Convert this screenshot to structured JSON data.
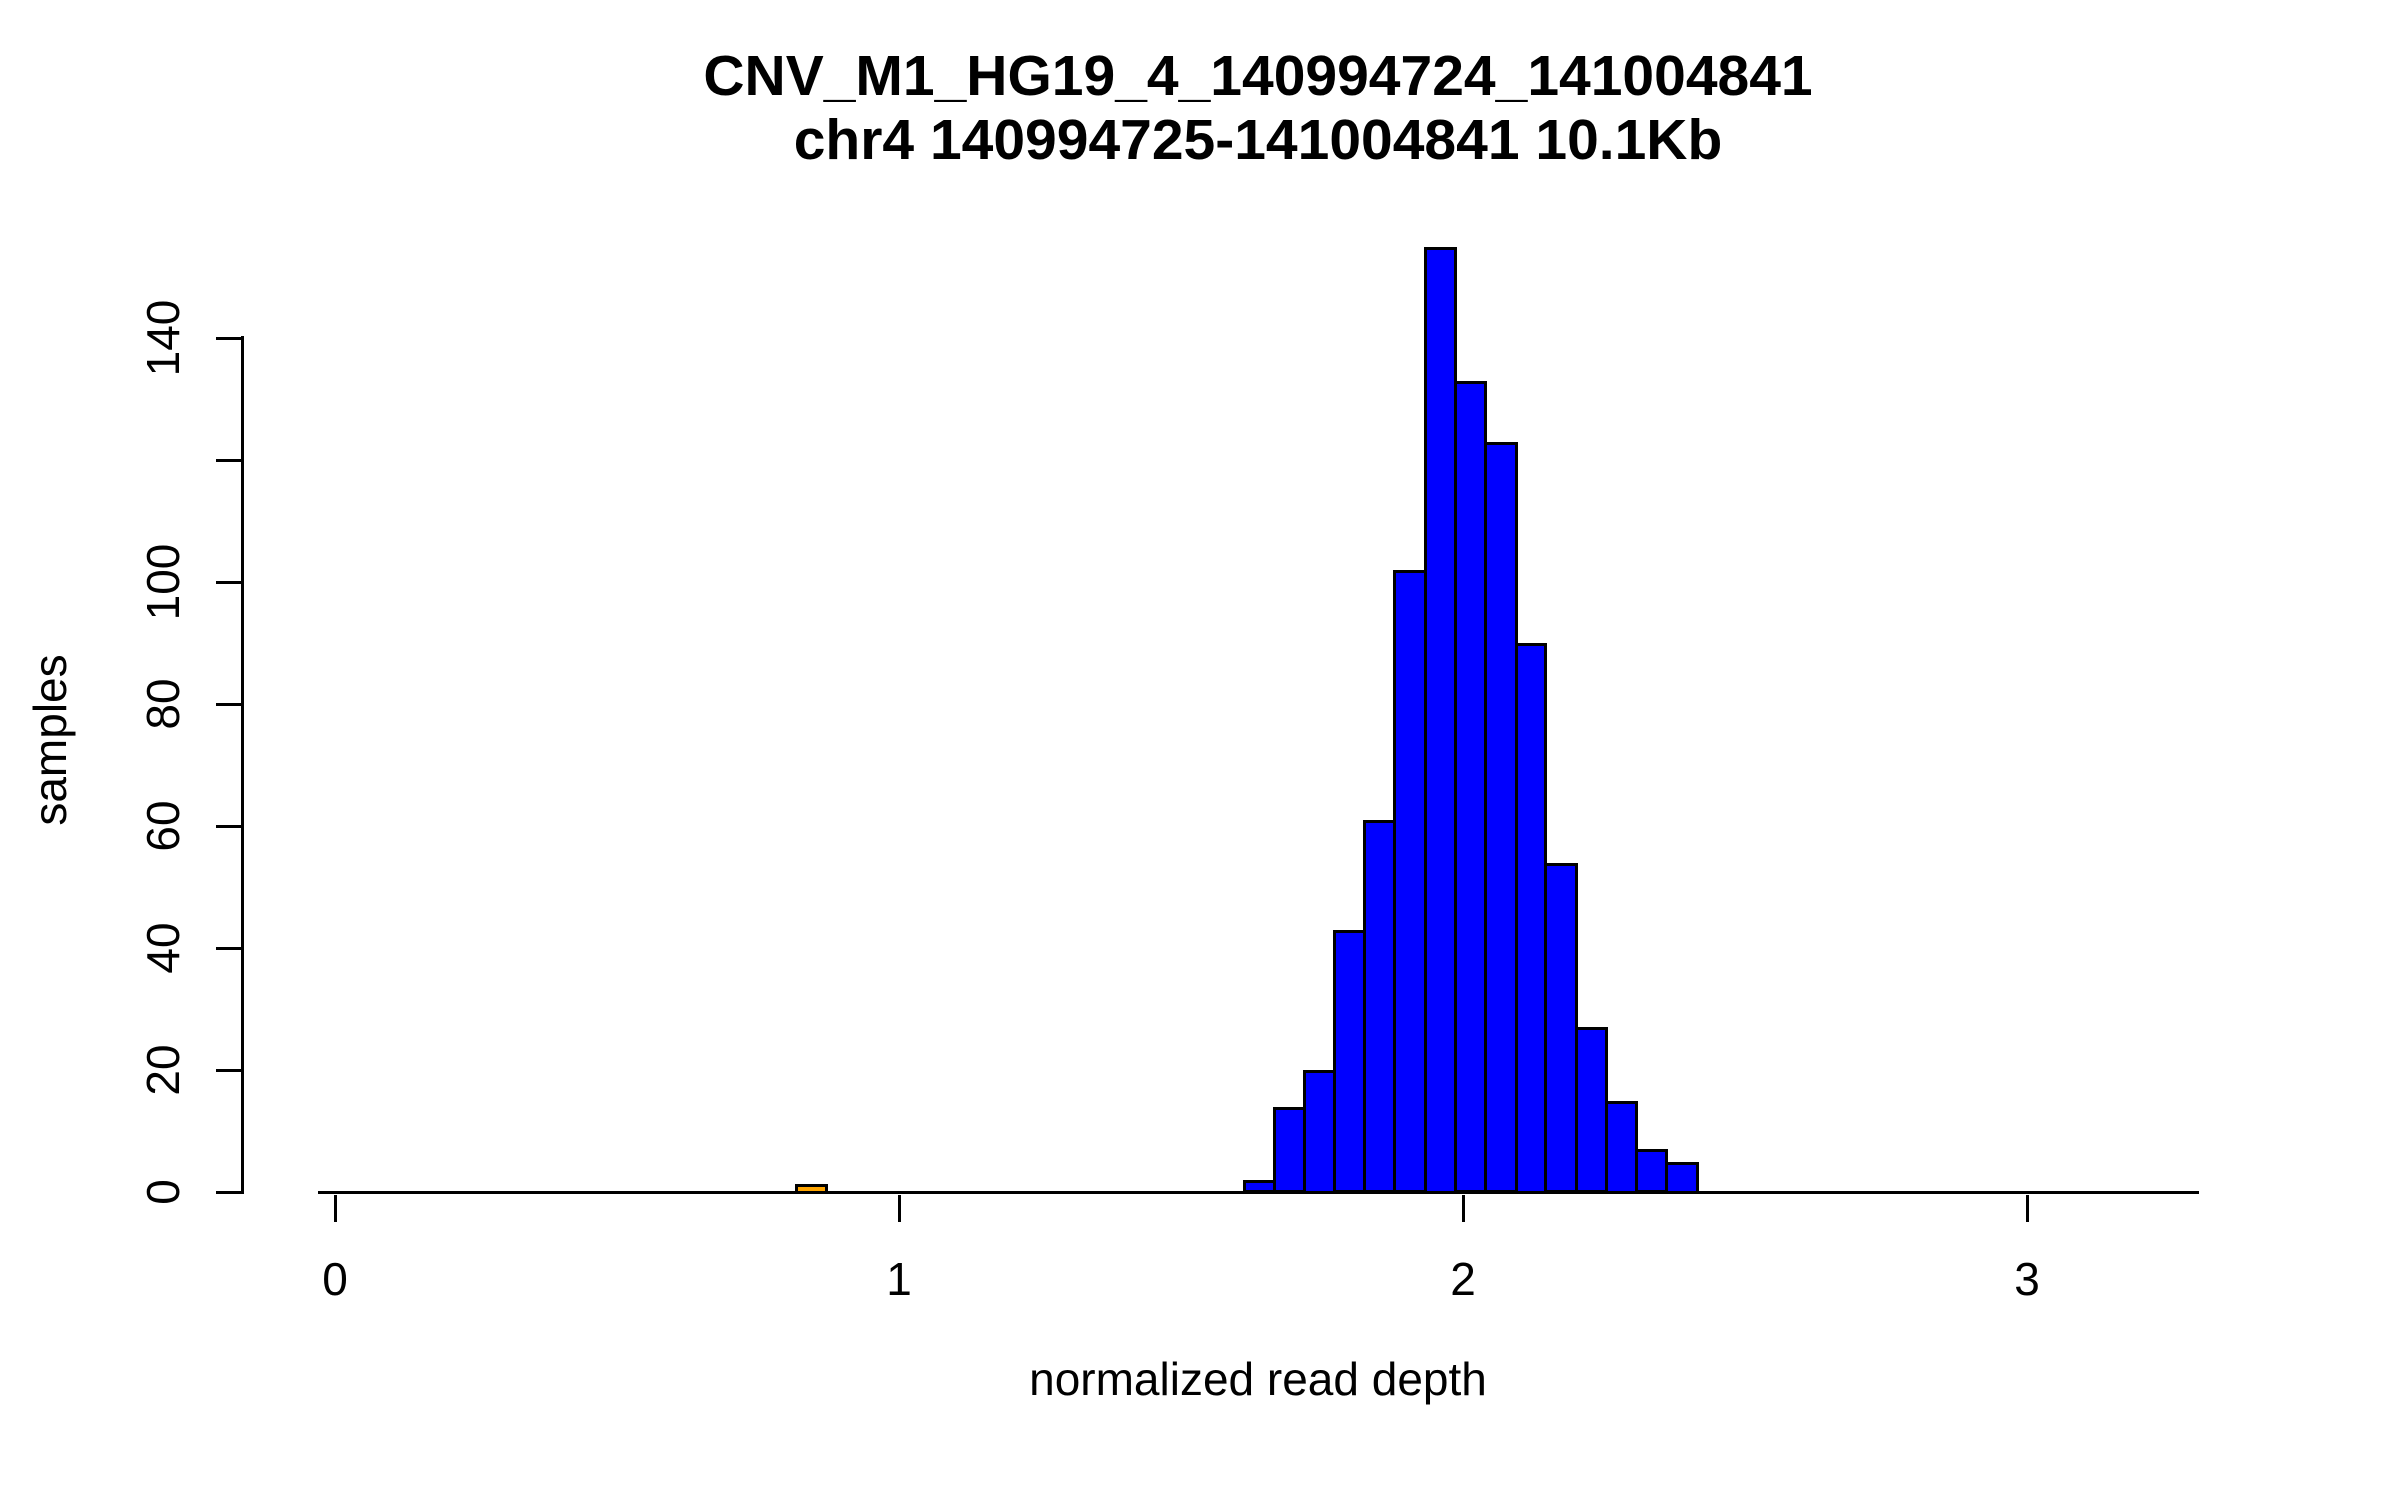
{
  "title": {
    "line1": "CNV_M1_HG19_4_140994724_141004841",
    "line2": "chr4 140994725-141004841 10.1Kb"
  },
  "axes": {
    "x_label": "normalized read depth",
    "y_label": "samples",
    "x_ticks": [
      {
        "value": 0,
        "label": "0"
      },
      {
        "value": 1,
        "label": "1"
      },
      {
        "value": 2,
        "label": "2"
      },
      {
        "value": 3,
        "label": "3"
      }
    ],
    "y_ticks": [
      {
        "value": 0,
        "label": "0"
      },
      {
        "value": 20,
        "label": "20"
      },
      {
        "value": 40,
        "label": "40"
      },
      {
        "value": 60,
        "label": "60"
      },
      {
        "value": 80,
        "label": "80"
      },
      {
        "value": 100,
        "label": "100"
      },
      {
        "value": 120,
        "label": ""
      },
      {
        "value": 140,
        "label": "140"
      }
    ]
  },
  "colors": {
    "bar_fill": "#0000ff",
    "bar_border": "#000000",
    "highlight_fill": "#ffa500",
    "axis": "#000000",
    "background": "#ffffff"
  },
  "chart_data": {
    "type": "bar",
    "subtype": "histogram",
    "title": "CNV_M1_HG19_4_140994724_141004841",
    "subtitle": "chr4 140994725-141004841 10.1Kb",
    "xlabel": "normalized read depth",
    "ylabel": "samples",
    "xlim": [
      -0.03,
      3.31
    ],
    "ylim": [
      0,
      155
    ],
    "x_tick_values": [
      0,
      1,
      2,
      3
    ],
    "y_tick_values": [
      0,
      20,
      40,
      60,
      80,
      100,
      120,
      140
    ],
    "grid": false,
    "legend": null,
    "bins": [
      {
        "start": 0.819,
        "end": 0.872,
        "count": 1,
        "color": "#ffa500"
      },
      {
        "start": 1.612,
        "end": 1.665,
        "count": 2,
        "color": "#0000ff"
      },
      {
        "start": 1.665,
        "end": 1.719,
        "count": 14,
        "color": "#0000ff"
      },
      {
        "start": 1.719,
        "end": 1.772,
        "count": 20,
        "color": "#0000ff"
      },
      {
        "start": 1.772,
        "end": 1.826,
        "count": 43,
        "color": "#0000ff"
      },
      {
        "start": 1.826,
        "end": 1.879,
        "count": 61,
        "color": "#0000ff"
      },
      {
        "start": 1.879,
        "end": 1.933,
        "count": 102,
        "color": "#0000ff"
      },
      {
        "start": 1.933,
        "end": 1.987,
        "count": 155,
        "color": "#0000ff"
      },
      {
        "start": 1.987,
        "end": 2.04,
        "count": 133,
        "color": "#0000ff"
      },
      {
        "start": 2.04,
        "end": 2.094,
        "count": 123,
        "color": "#0000ff"
      },
      {
        "start": 2.094,
        "end": 2.147,
        "count": 90,
        "color": "#0000ff"
      },
      {
        "start": 2.147,
        "end": 2.201,
        "count": 54,
        "color": "#0000ff"
      },
      {
        "start": 2.201,
        "end": 2.254,
        "count": 27,
        "color": "#0000ff"
      },
      {
        "start": 2.254,
        "end": 2.308,
        "count": 15,
        "color": "#0000ff"
      },
      {
        "start": 2.308,
        "end": 2.361,
        "count": 7,
        "color": "#0000ff"
      },
      {
        "start": 2.361,
        "end": 2.415,
        "count": 5,
        "color": "#0000ff"
      }
    ]
  }
}
